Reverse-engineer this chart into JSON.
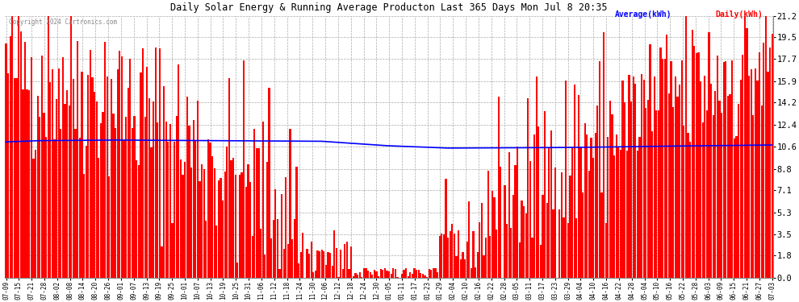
{
  "title": "Daily Solar Energy & Running Average Producton Last 365 Days Mon Jul 8 20:35",
  "copyright": "Copyright 2024 Cartronics.com",
  "legend_avg": "Average(kWh)",
  "legend_daily": "Daily(kWh)",
  "yticks": [
    0.0,
    1.8,
    3.5,
    5.3,
    7.1,
    8.8,
    10.6,
    12.4,
    14.2,
    15.9,
    17.7,
    19.5,
    21.2
  ],
  "ymax": 21.2,
  "bar_color": "#ff0000",
  "avg_color": "#0000ff",
  "bg_color": "#ffffff",
  "grid_color": "#aaaaaa",
  "title_color": "#000000",
  "copyright_color": "#888888",
  "x_labels": [
    "07-09",
    "07-15",
    "07-21",
    "07-28",
    "08-02",
    "08-08",
    "08-14",
    "08-20",
    "08-26",
    "09-01",
    "09-07",
    "09-13",
    "09-19",
    "09-25",
    "10-01",
    "10-07",
    "10-13",
    "10-19",
    "10-25",
    "10-31",
    "11-06",
    "11-12",
    "11-18",
    "11-24",
    "11-30",
    "12-06",
    "12-12",
    "12-18",
    "12-24",
    "12-30",
    "01-05",
    "01-11",
    "01-17",
    "01-23",
    "01-29",
    "02-04",
    "02-10",
    "02-16",
    "02-22",
    "02-28",
    "03-05",
    "03-11",
    "03-17",
    "03-23",
    "03-29",
    "04-04",
    "04-10",
    "04-16",
    "04-22",
    "04-28",
    "05-04",
    "05-10",
    "05-16",
    "05-22",
    "05-28",
    "06-03",
    "06-09",
    "06-15",
    "06-21",
    "06-27",
    "07-03"
  ],
  "num_bars": 365,
  "seed": 42,
  "avg_keypoints_x": [
    0,
    15,
    50,
    100,
    150,
    180,
    210,
    240,
    270,
    310,
    364
  ],
  "avg_keypoints_y": [
    11.0,
    11.1,
    11.15,
    11.1,
    11.05,
    10.7,
    10.5,
    10.52,
    10.55,
    10.65,
    10.75
  ]
}
